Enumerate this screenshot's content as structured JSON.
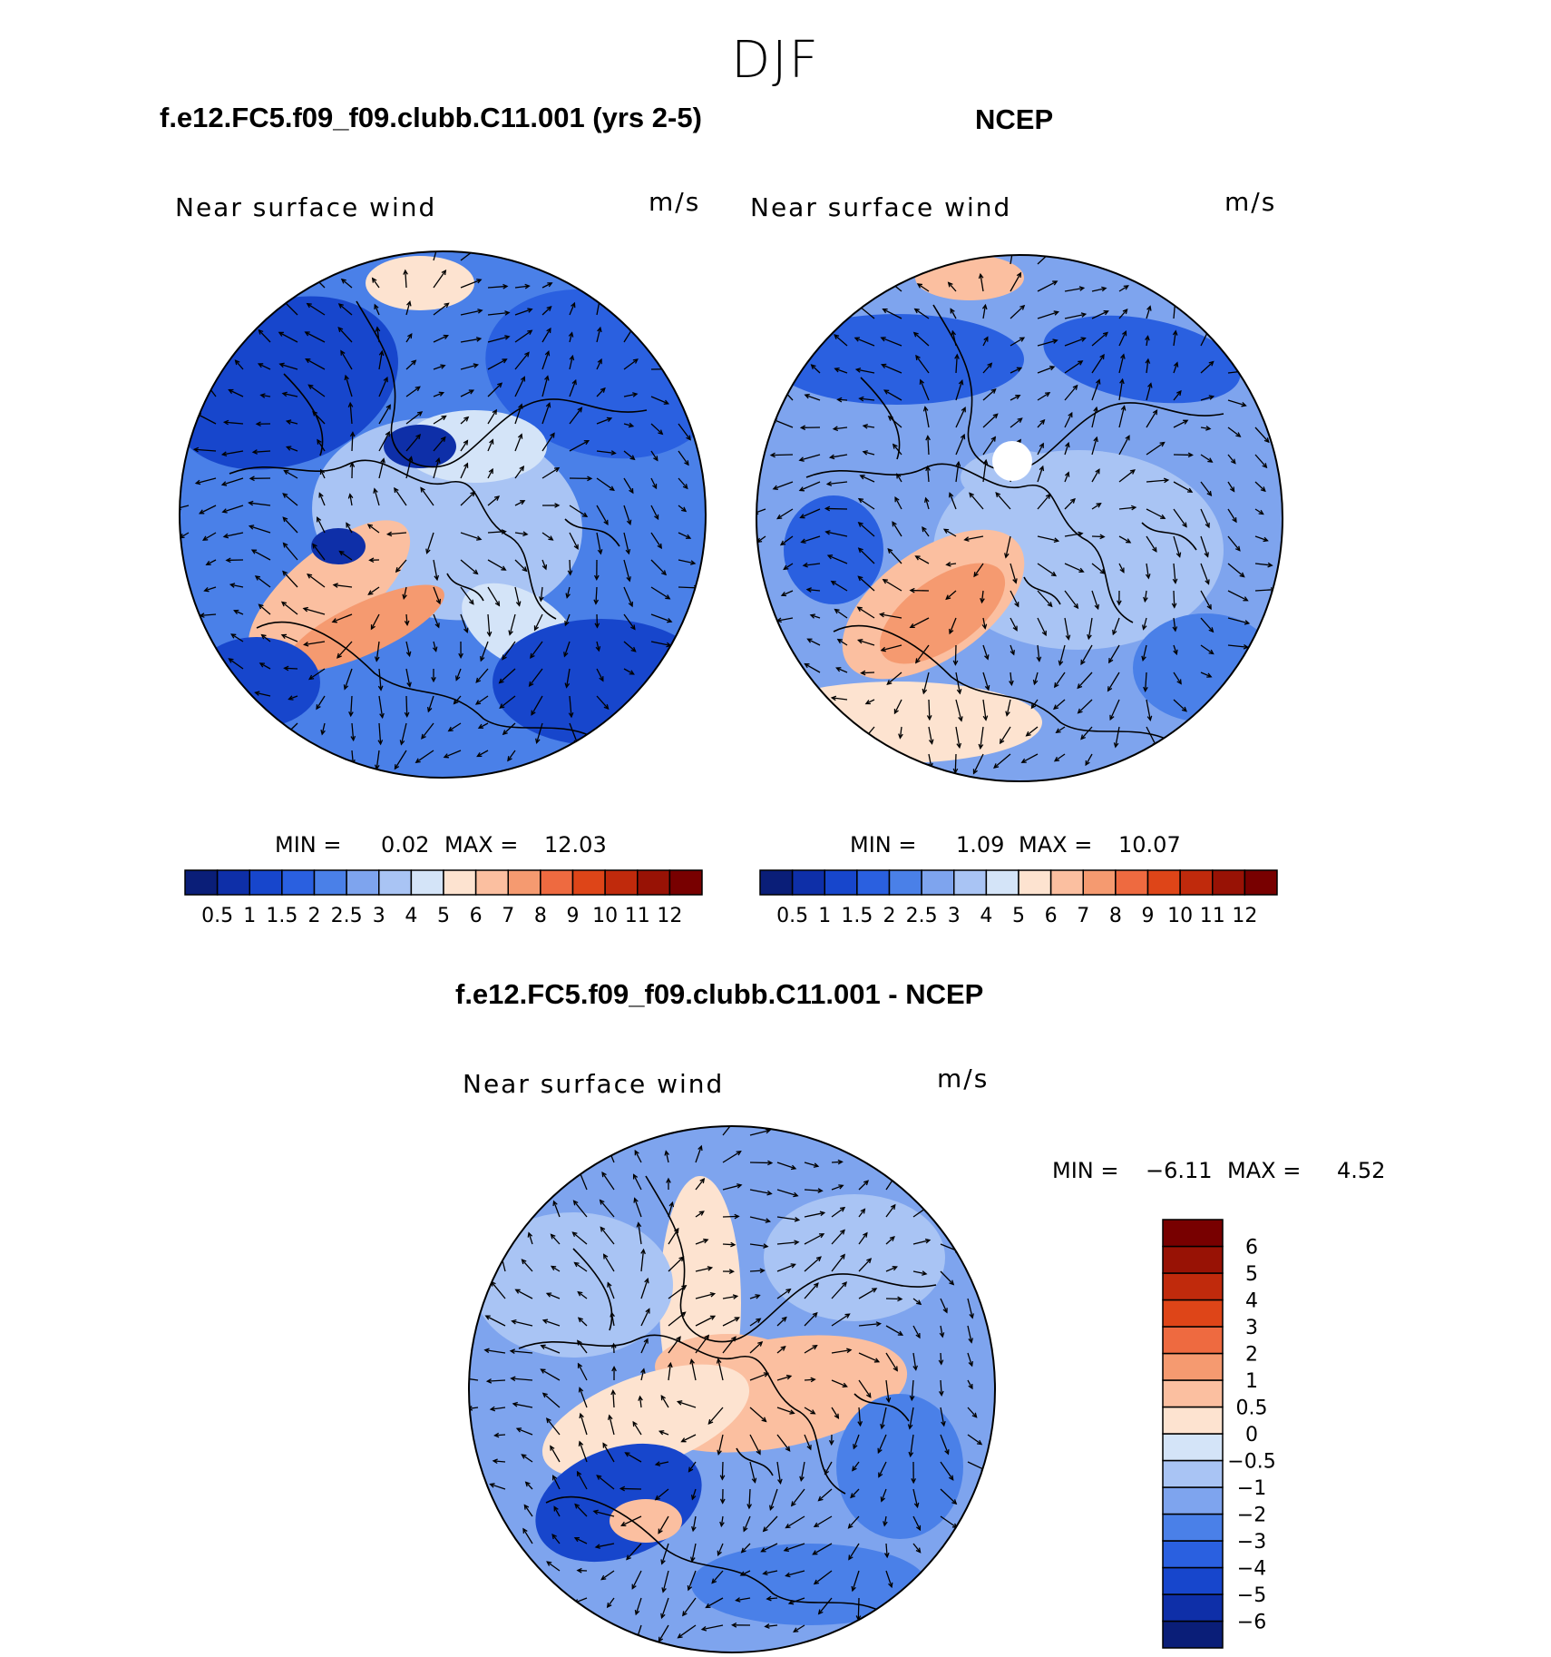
{
  "figure": {
    "season": "DJF"
  },
  "chart_data": [
    {
      "type": "heatmap",
      "panel": "model",
      "title": "f.e12.FC5.f09_f09.clubb.C11.001 (yrs 2-5)",
      "variable": "Near surface wind",
      "units": "m/s",
      "min_label": "MIN =",
      "min_value": "0.02",
      "max_label": "MAX =",
      "max_value": "12.03",
      "colorbar_orientation": "horizontal",
      "levels": [
        "0.5",
        "1",
        "1.5",
        "2",
        "2.5",
        "3",
        "4",
        "5",
        "6",
        "7",
        "8",
        "9",
        "10",
        "11",
        "12"
      ]
    },
    {
      "type": "heatmap",
      "panel": "observations",
      "title": "NCEP",
      "variable": "Near surface wind",
      "units": "m/s",
      "min_label": "MIN =",
      "min_value": "1.09",
      "max_label": "MAX =",
      "max_value": "10.07",
      "colorbar_orientation": "horizontal",
      "levels": [
        "0.5",
        "1",
        "1.5",
        "2",
        "2.5",
        "3",
        "4",
        "5",
        "6",
        "7",
        "8",
        "9",
        "10",
        "11",
        "12"
      ]
    },
    {
      "type": "heatmap",
      "panel": "difference",
      "title": "f.e12.FC5.f09_f09.clubb.C11.001 - NCEP",
      "variable": "Near surface wind",
      "units": "m/s",
      "min_label": "MIN =",
      "min_value": "−6.11",
      "max_label": "MAX =",
      "max_value": "4.52",
      "colorbar_orientation": "vertical",
      "levels": [
        "−6",
        "−5",
        "−4",
        "−3",
        "−2",
        "−1",
        "−0.5",
        "0",
        "0.5",
        "1",
        "2",
        "3",
        "4",
        "5",
        "6"
      ]
    }
  ],
  "colors": {
    "scale": [
      "#0a1e78",
      "#0e2fa8",
      "#1746cc",
      "#2a60e0",
      "#4a80e8",
      "#7ea4ee",
      "#a9c4f4",
      "#d4e4f8",
      "#fde3d0",
      "#fbbfa0",
      "#f59a70",
      "#ee6a40",
      "#de4518",
      "#c02a0c",
      "#981205",
      "#780000"
    ]
  }
}
